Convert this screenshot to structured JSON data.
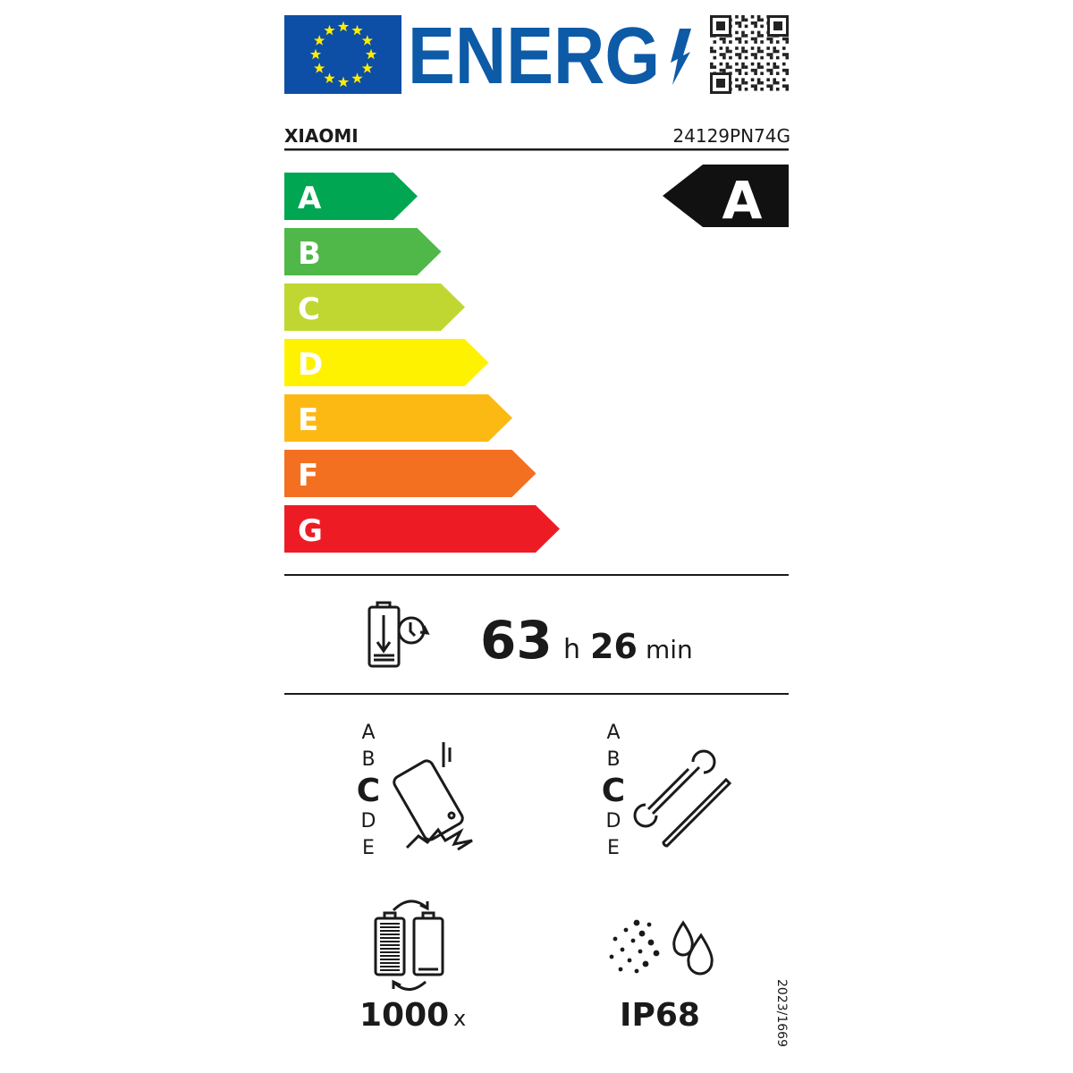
{
  "header": {
    "logo_text": "ENERG",
    "flag_color": "#0d4ea6",
    "star_color": "#ffed00",
    "brand_color": "#0d5aa7",
    "qr_icon": "qr-code-icon"
  },
  "supplier": "XIAOMI",
  "model": "24129PN74G",
  "scale": {
    "classes": [
      {
        "letter": "A",
        "color": "#00a651"
      },
      {
        "letter": "B",
        "color": "#50b848"
      },
      {
        "letter": "C",
        "color": "#bfd730"
      },
      {
        "letter": "D",
        "color": "#fff200"
      },
      {
        "letter": "E",
        "color": "#fdb913"
      },
      {
        "letter": "F",
        "color": "#f37021"
      },
      {
        "letter": "G",
        "color": "#ed1c24"
      }
    ],
    "rated_class": "A"
  },
  "battery_endurance": {
    "icon": "battery-endurance-icon",
    "hours": "63",
    "hours_unit": "h",
    "minutes": "26",
    "minutes_unit": "min"
  },
  "drop_resistance": {
    "icon": "phone-drop-icon",
    "scale": [
      "A",
      "B",
      "C",
      "D",
      "E"
    ],
    "selected": "C"
  },
  "repairability": {
    "icon": "wrench-screwdriver-icon",
    "scale": [
      "A",
      "B",
      "C",
      "D",
      "E"
    ],
    "selected": "C"
  },
  "battery_cycles": {
    "icon": "battery-cycle-icon",
    "value": "1000",
    "unit": "x"
  },
  "ingress_protection": {
    "icon": "dust-water-icon",
    "value": "IP68"
  },
  "regulation": "2023/1669"
}
